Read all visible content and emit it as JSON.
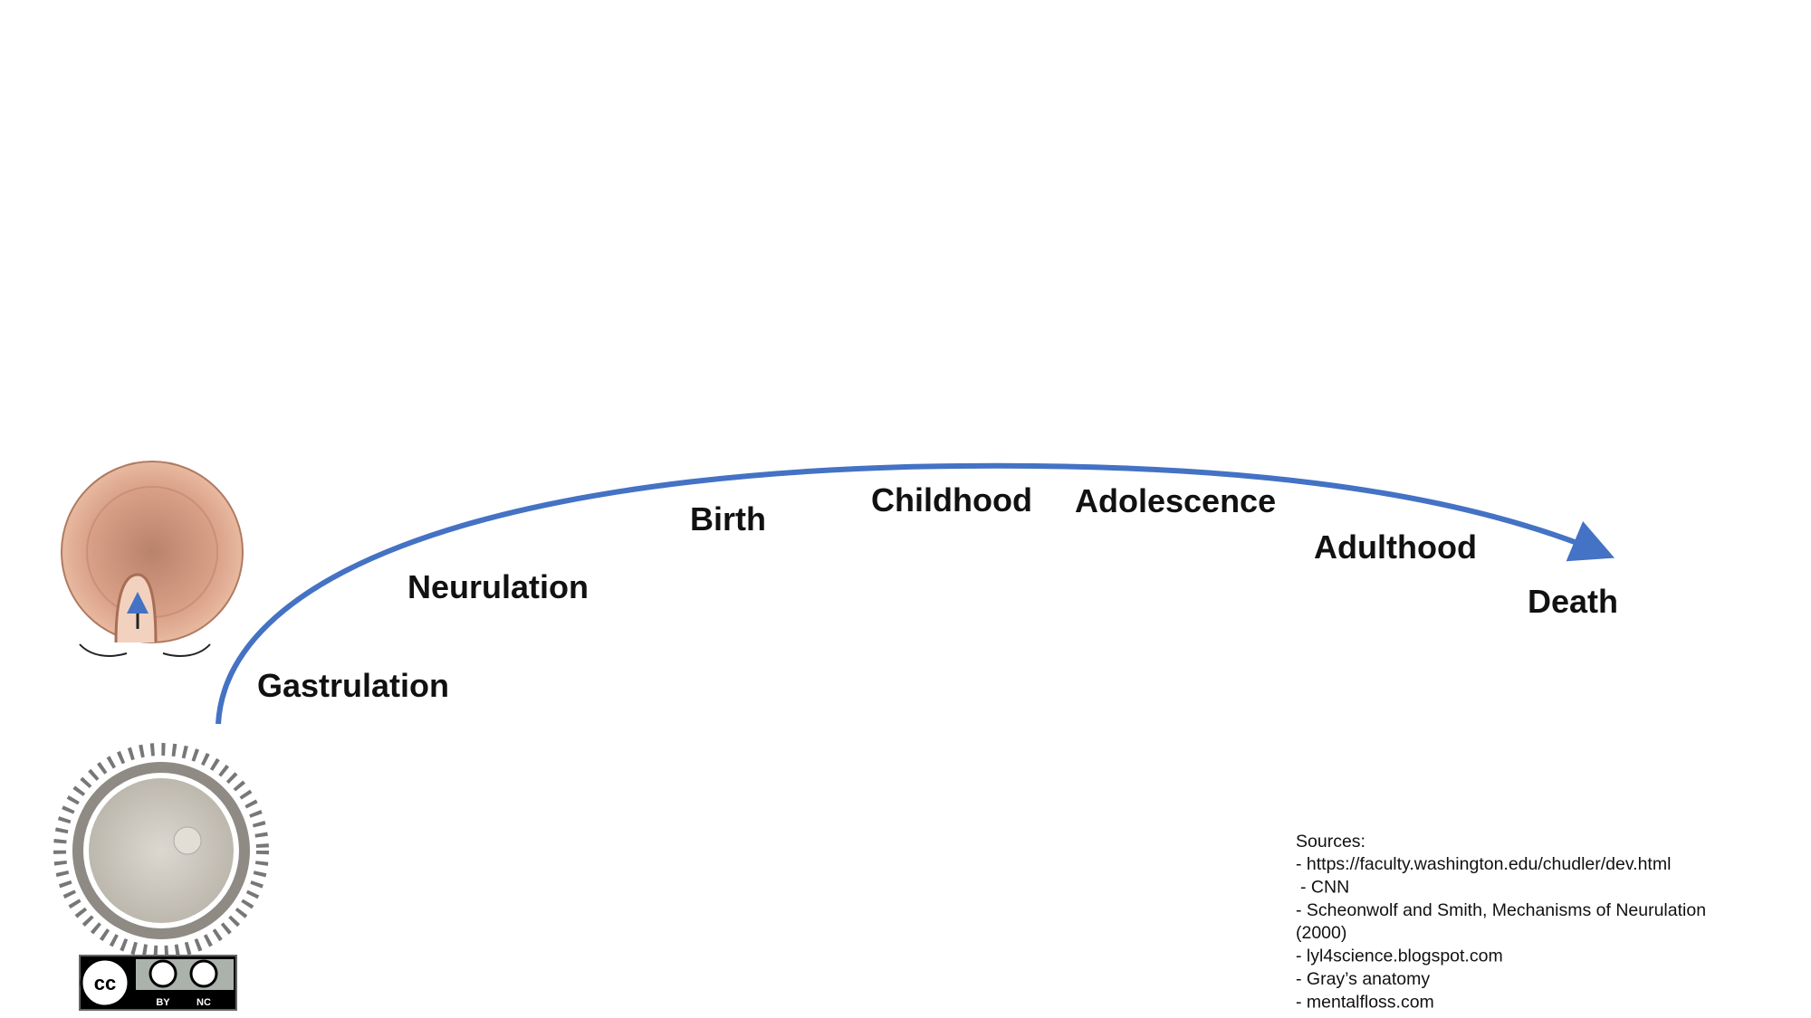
{
  "stages": [
    "Gastrulation",
    "Neurulation",
    "Birth",
    "Childhood",
    "Adolescence",
    "Adulthood",
    "Death"
  ],
  "sources": {
    "title": "Sources:",
    "lines": [
      "- https://faculty.washington.edu/chudler/dev.html",
      "- CNN",
      "- Scheonwolf and Smith, Mechanisms of Neurulation",
      "(2000)",
      "- lyl4science.blogspot.com",
      "- Gray’s anatomy",
      "- mentalfloss.com"
    ]
  },
  "license": {
    "logo": "cc",
    "by": "BY",
    "nc": "NC"
  }
}
